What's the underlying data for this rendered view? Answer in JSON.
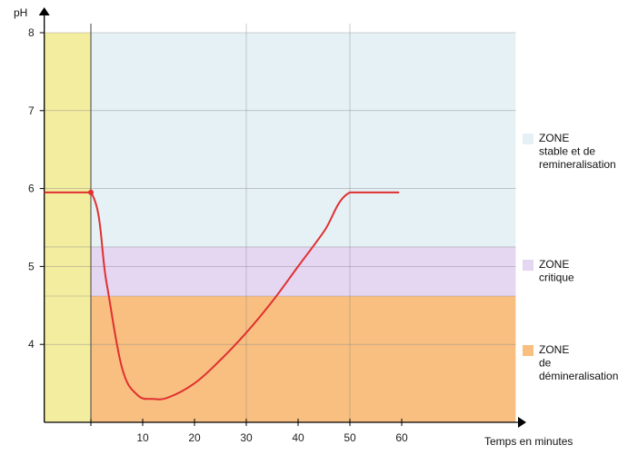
{
  "chart_data": {
    "type": "line",
    "ylabel": "pH",
    "xlabel": "Temps en minutes",
    "xlim": [
      -9,
      75
    ],
    "ylim": [
      3.0,
      8.0
    ],
    "x_ticks": [
      10,
      20,
      30,
      40,
      50,
      60
    ],
    "y_ticks": [
      4,
      5,
      6,
      7,
      8
    ],
    "grid": true,
    "colors": {
      "line": "#e03030",
      "initial_band": "#f3eda0",
      "zone_stable": "#e6f1f6",
      "zone_critique": "#e5d6f2",
      "zone_demineralisation": "#f8bf80",
      "grid": "#888888",
      "axis": "#000000"
    },
    "initial_band_x": [
      -9,
      0
    ],
    "plot_area_x": [
      0,
      82
    ],
    "zones": [
      {
        "key": "stable",
        "y_range": [
          5.25,
          8.0
        ],
        "legend": [
          "ZONE",
          "stable et de",
          "remineralisation"
        ]
      },
      {
        "key": "critique",
        "y_range": [
          4.62,
          5.25
        ],
        "legend": [
          "ZONE",
          "critique"
        ]
      },
      {
        "key": "demineralisation",
        "y_range": [
          3.0,
          4.62
        ],
        "legend": [
          "ZONE",
          "de",
          "démineralisation"
        ]
      }
    ],
    "series": [
      {
        "x": [
          -9,
          0,
          3,
          6,
          9,
          12,
          15,
          20,
          25,
          30,
          35,
          40,
          45,
          50,
          59.5
        ],
        "y": [
          5.95,
          5.95,
          4.8,
          3.7,
          3.35,
          3.3,
          3.32,
          3.5,
          3.8,
          4.15,
          4.55,
          5.0,
          5.45,
          5.95,
          5.95
        ]
      }
    ],
    "markers": [
      {
        "x": 0,
        "y": 5.95
      }
    ]
  }
}
